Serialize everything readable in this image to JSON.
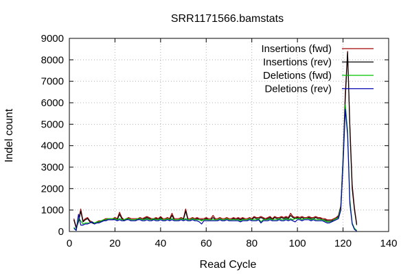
{
  "chart_data": {
    "type": "line",
    "title": "SRR1171566.bamstats",
    "xlabel": "Read Cycle",
    "ylabel": "Indel count",
    "xlim": [
      0,
      140
    ],
    "ylim": [
      0,
      9000
    ],
    "xticks": [
      0,
      20,
      40,
      60,
      80,
      100,
      120,
      140
    ],
    "yticks": [
      0,
      1000,
      2000,
      3000,
      4000,
      5000,
      6000,
      7000,
      8000,
      9000
    ],
    "grid": true,
    "legend_position": "top-right",
    "series": [
      {
        "name": "Insertions (fwd)",
        "color": "#a00000",
        "x": [
          2,
          3,
          4,
          5,
          6,
          7,
          8,
          9,
          10,
          11,
          12,
          13,
          14,
          15,
          16,
          17,
          18,
          19,
          20,
          21,
          22,
          23,
          24,
          25,
          26,
          27,
          28,
          29,
          30,
          31,
          32,
          33,
          34,
          35,
          36,
          37,
          38,
          39,
          40,
          41,
          42,
          43,
          44,
          45,
          46,
          47,
          48,
          49,
          50,
          51,
          52,
          53,
          54,
          55,
          56,
          57,
          58,
          59,
          60,
          61,
          62,
          63,
          64,
          65,
          66,
          67,
          68,
          69,
          70,
          71,
          72,
          73,
          74,
          75,
          76,
          77,
          78,
          79,
          80,
          81,
          82,
          83,
          84,
          85,
          86,
          87,
          88,
          89,
          90,
          91,
          92,
          93,
          94,
          95,
          96,
          97,
          98,
          99,
          100,
          101,
          102,
          103,
          104,
          105,
          106,
          107,
          108,
          109,
          110,
          111,
          112,
          113,
          114,
          115,
          116,
          117,
          118,
          119,
          120,
          121,
          122,
          123,
          124,
          125,
          126
        ],
        "y": [
          600,
          200,
          500,
          1050,
          500,
          600,
          650,
          500,
          450,
          400,
          450,
          500,
          500,
          550,
          600,
          600,
          600,
          600,
          650,
          600,
          900,
          650,
          550,
          600,
          650,
          600,
          600,
          600,
          600,
          650,
          600,
          650,
          700,
          650,
          600,
          600,
          650,
          600,
          700,
          600,
          600,
          650,
          600,
          850,
          600,
          600,
          600,
          650,
          600,
          1050,
          600,
          600,
          650,
          600,
          650,
          600,
          600,
          600,
          650,
          600,
          600,
          750,
          600,
          600,
          650,
          600,
          600,
          650,
          600,
          600,
          650,
          600,
          650,
          600,
          650,
          600,
          600,
          650,
          600,
          700,
          650,
          650,
          700,
          650,
          600,
          650,
          700,
          600,
          700,
          650,
          650,
          700,
          650,
          700,
          650,
          850,
          700,
          650,
          700,
          650,
          700,
          650,
          650,
          700,
          650,
          650,
          700,
          650,
          650,
          600,
          600,
          550,
          550,
          550,
          600,
          650,
          750,
          1200,
          3500,
          6500,
          8400,
          5000,
          2200,
          1100,
          350
        ]
      },
      {
        "name": "Insertions (rev)",
        "color": "#000000",
        "x": [
          2,
          3,
          4,
          5,
          6,
          7,
          8,
          9,
          10,
          11,
          12,
          13,
          14,
          15,
          16,
          17,
          18,
          19,
          20,
          21,
          22,
          23,
          24,
          25,
          26,
          27,
          28,
          29,
          30,
          31,
          32,
          33,
          34,
          35,
          36,
          37,
          38,
          39,
          40,
          41,
          42,
          43,
          44,
          45,
          46,
          47,
          48,
          49,
          50,
          51,
          52,
          53,
          54,
          55,
          56,
          57,
          58,
          59,
          60,
          61,
          62,
          63,
          64,
          65,
          66,
          67,
          68,
          69,
          70,
          71,
          72,
          73,
          74,
          75,
          76,
          77,
          78,
          79,
          80,
          81,
          82,
          83,
          84,
          85,
          86,
          87,
          88,
          89,
          90,
          91,
          92,
          93,
          94,
          95,
          96,
          97,
          98,
          99,
          100,
          101,
          102,
          103,
          104,
          105,
          106,
          107,
          108,
          109,
          110,
          111,
          112,
          113,
          114,
          115,
          116,
          117,
          118,
          119,
          120,
          121,
          122,
          123,
          124,
          125,
          126
        ],
        "y": [
          550,
          150,
          450,
          950,
          450,
          550,
          600,
          450,
          400,
          350,
          400,
          450,
          450,
          500,
          550,
          550,
          550,
          550,
          600,
          550,
          800,
          600,
          500,
          550,
          600,
          550,
          550,
          550,
          550,
          600,
          550,
          600,
          650,
          600,
          550,
          550,
          600,
          550,
          650,
          550,
          550,
          600,
          550,
          750,
          550,
          550,
          550,
          600,
          550,
          950,
          550,
          550,
          600,
          550,
          600,
          550,
          550,
          550,
          600,
          550,
          550,
          650,
          550,
          550,
          600,
          550,
          550,
          600,
          550,
          550,
          600,
          550,
          600,
          550,
          600,
          550,
          550,
          600,
          550,
          650,
          600,
          600,
          650,
          600,
          550,
          600,
          650,
          550,
          650,
          600,
          600,
          650,
          600,
          650,
          600,
          750,
          650,
          600,
          650,
          600,
          650,
          600,
          600,
          650,
          600,
          600,
          650,
          600,
          600,
          550,
          550,
          500,
          500,
          500,
          550,
          600,
          700,
          1150,
          3300,
          6200,
          8350,
          4800,
          2000,
          1000,
          300
        ]
      },
      {
        "name": "Deletions (fwd)",
        "color": "#00c000",
        "x": [
          2,
          3,
          4,
          5,
          6,
          7,
          8,
          9,
          10,
          11,
          12,
          13,
          14,
          15,
          16,
          17,
          18,
          19,
          20,
          21,
          22,
          23,
          24,
          25,
          26,
          27,
          28,
          29,
          30,
          31,
          32,
          33,
          34,
          35,
          36,
          37,
          38,
          39,
          40,
          41,
          42,
          43,
          44,
          45,
          46,
          47,
          48,
          49,
          50,
          51,
          52,
          53,
          54,
          55,
          56,
          57,
          58,
          59,
          60,
          61,
          62,
          63,
          64,
          65,
          66,
          67,
          68,
          69,
          70,
          71,
          72,
          73,
          74,
          75,
          76,
          77,
          78,
          79,
          80,
          81,
          82,
          83,
          84,
          85,
          86,
          87,
          88,
          89,
          90,
          91,
          92,
          93,
          94,
          95,
          96,
          97,
          98,
          99,
          100,
          101,
          102,
          103,
          104,
          105,
          106,
          107,
          108,
          109,
          110,
          111,
          112,
          113,
          114,
          115,
          116,
          117,
          118,
          119,
          120,
          121,
          122,
          123,
          124,
          125,
          126
        ],
        "y": [
          200,
          50,
          600,
          500,
          350,
          400,
          400,
          400,
          450,
          400,
          450,
          450,
          500,
          550,
          550,
          600,
          600,
          600,
          600,
          550,
          600,
          550,
          550,
          600,
          600,
          550,
          550,
          550,
          600,
          600,
          550,
          550,
          600,
          550,
          550,
          600,
          550,
          550,
          600,
          550,
          550,
          600,
          550,
          600,
          550,
          550,
          550,
          600,
          550,
          600,
          550,
          550,
          600,
          550,
          550,
          550,
          500,
          550,
          550,
          550,
          550,
          550,
          550,
          550,
          600,
          550,
          550,
          600,
          550,
          550,
          550,
          550,
          550,
          500,
          550,
          550,
          550,
          600,
          550,
          550,
          550,
          600,
          450,
          550,
          550,
          550,
          600,
          550,
          550,
          550,
          600,
          550,
          550,
          600,
          550,
          600,
          550,
          600,
          600,
          600,
          550,
          600,
          600,
          600,
          550,
          600,
          550,
          550,
          550,
          550,
          500,
          450,
          450,
          450,
          550,
          600,
          650,
          1100,
          3400,
          5900,
          4700,
          1500,
          400,
          150,
          50
        ]
      },
      {
        "name": "Deletions (rev)",
        "color": "#0000b0",
        "x": [
          2,
          3,
          4,
          5,
          6,
          7,
          8,
          9,
          10,
          11,
          12,
          13,
          14,
          15,
          16,
          17,
          18,
          19,
          20,
          21,
          22,
          23,
          24,
          25,
          26,
          27,
          28,
          29,
          30,
          31,
          32,
          33,
          34,
          35,
          36,
          37,
          38,
          39,
          40,
          41,
          42,
          43,
          44,
          45,
          46,
          47,
          48,
          49,
          50,
          51,
          52,
          53,
          54,
          55,
          56,
          57,
          58,
          59,
          60,
          61,
          62,
          63,
          64,
          65,
          66,
          67,
          68,
          69,
          70,
          71,
          72,
          73,
          74,
          75,
          76,
          77,
          78,
          79,
          80,
          81,
          82,
          83,
          84,
          85,
          86,
          87,
          88,
          89,
          90,
          91,
          92,
          93,
          94,
          95,
          96,
          97,
          98,
          99,
          100,
          101,
          102,
          103,
          104,
          105,
          106,
          107,
          108,
          109,
          110,
          111,
          112,
          113,
          114,
          115,
          116,
          117,
          118,
          119,
          120,
          121,
          122,
          123,
          124,
          125,
          126
        ],
        "y": [
          150,
          50,
          800,
          300,
          300,
          350,
          350,
          400,
          450,
          350,
          400,
          400,
          450,
          500,
          500,
          550,
          550,
          550,
          550,
          500,
          550,
          500,
          500,
          550,
          550,
          500,
          500,
          500,
          550,
          550,
          500,
          500,
          550,
          500,
          500,
          550,
          500,
          500,
          550,
          500,
          500,
          550,
          500,
          550,
          500,
          500,
          500,
          550,
          500,
          550,
          500,
          500,
          550,
          500,
          500,
          450,
          350,
          500,
          500,
          500,
          500,
          500,
          500,
          500,
          550,
          500,
          500,
          550,
          500,
          500,
          500,
          500,
          500,
          450,
          500,
          500,
          500,
          550,
          500,
          500,
          500,
          550,
          400,
          500,
          500,
          500,
          550,
          500,
          500,
          500,
          550,
          500,
          500,
          550,
          500,
          550,
          500,
          450,
          550,
          550,
          500,
          550,
          550,
          550,
          500,
          550,
          500,
          500,
          500,
          500,
          450,
          400,
          400,
          450,
          500,
          550,
          600,
          1000,
          3100,
          5700,
          4500,
          1300,
          350,
          100,
          20
        ]
      }
    ]
  }
}
